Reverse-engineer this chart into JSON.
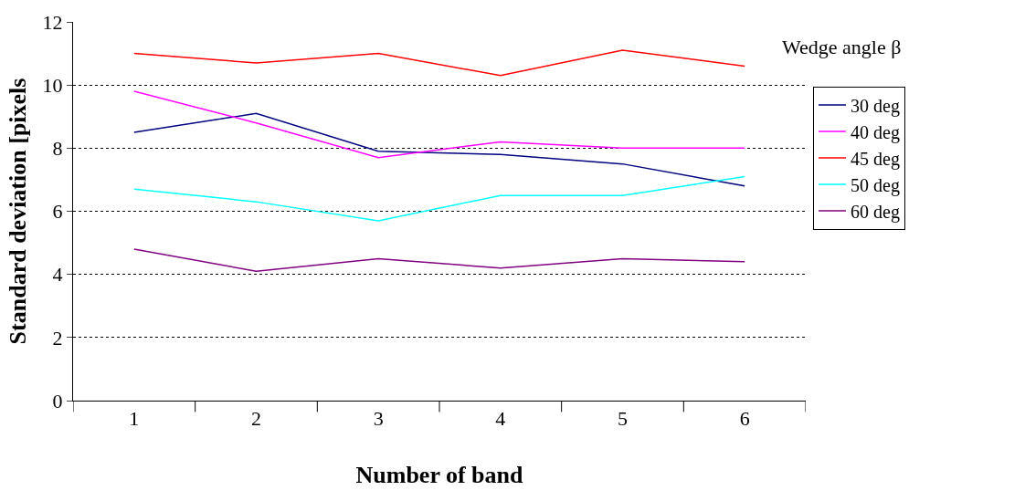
{
  "chart_data": {
    "type": "line",
    "xlabel": "Number of band",
    "ylabel": "Standard deviation [pixels",
    "legend_title": "Wedge angle β",
    "categories": [
      "1",
      "2",
      "3",
      "4",
      "5",
      "6"
    ],
    "series": [
      {
        "name": "30 deg",
        "color": "#000080",
        "values": [
          8.5,
          9.1,
          7.9,
          7.8,
          7.5,
          6.8
        ]
      },
      {
        "name": "40 deg",
        "color": "#ff00ff",
        "values": [
          9.8,
          8.8,
          7.7,
          8.2,
          8.0,
          8.0
        ]
      },
      {
        "name": "45 deg",
        "color": "#ff0000",
        "values": [
          11.0,
          10.7,
          11.0,
          10.3,
          11.1,
          10.6
        ]
      },
      {
        "name": "50 deg",
        "color": "#00ffff",
        "values": [
          6.7,
          6.3,
          5.7,
          6.5,
          6.5,
          7.1
        ]
      },
      {
        "name": "60 deg",
        "color": "#800080",
        "values": [
          4.8,
          4.1,
          4.5,
          4.2,
          4.5,
          4.4
        ]
      }
    ],
    "ylim": [
      0,
      12
    ],
    "yticks": [
      0,
      2,
      4,
      6,
      8,
      10,
      12
    ],
    "grid": "y",
    "legend": "right",
    "marker": "none",
    "line_style": "solid"
  }
}
